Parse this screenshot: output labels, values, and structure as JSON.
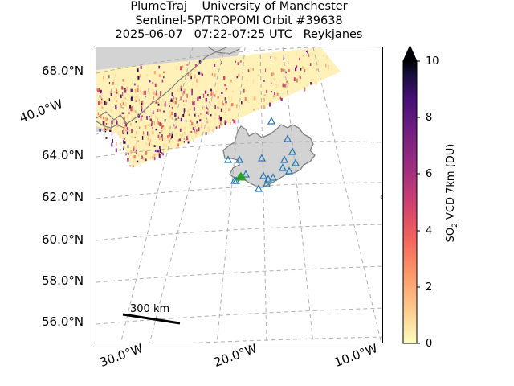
{
  "title": {
    "line1": "PlumeTraj    University of Manchester",
    "line2": "Sentinel-5P/TROPOMI Orbit #39638",
    "line3": "2025-06-07   07:22-07:25 UTC   Reykjanes"
  },
  "lat_labels": [
    "68.0°N",
    "64.0°N",
    "62.0°N",
    "60.0°N",
    "58.0°N",
    "56.0°N"
  ],
  "lon_labels": {
    "left_edge": "40.0°W",
    "bottom": [
      "30.0°W",
      "20.0°W",
      "10.0°W"
    ]
  },
  "scale_bar": {
    "label": "300 km"
  },
  "colorbar": {
    "label": "SO2 VCD 7km (DU)",
    "label_main": "SO",
    "label_sub": "2",
    "label_rest": " VCD 7km (DU)",
    "ticks": [
      "0",
      "2",
      "4",
      "6",
      "8",
      "10"
    ],
    "min": 0,
    "max": 10,
    "extend": "max",
    "colormap": "magma-reversed"
  },
  "markers": {
    "stations": {
      "shape": "open triangle",
      "color": "#1f77b4"
    },
    "vent": {
      "shape": "filled triangle",
      "color": "#2ca02c"
    }
  },
  "colors": {
    "land": "#d3d3d3",
    "coastline": "#808080",
    "gridline": "#b0b0b0"
  }
}
